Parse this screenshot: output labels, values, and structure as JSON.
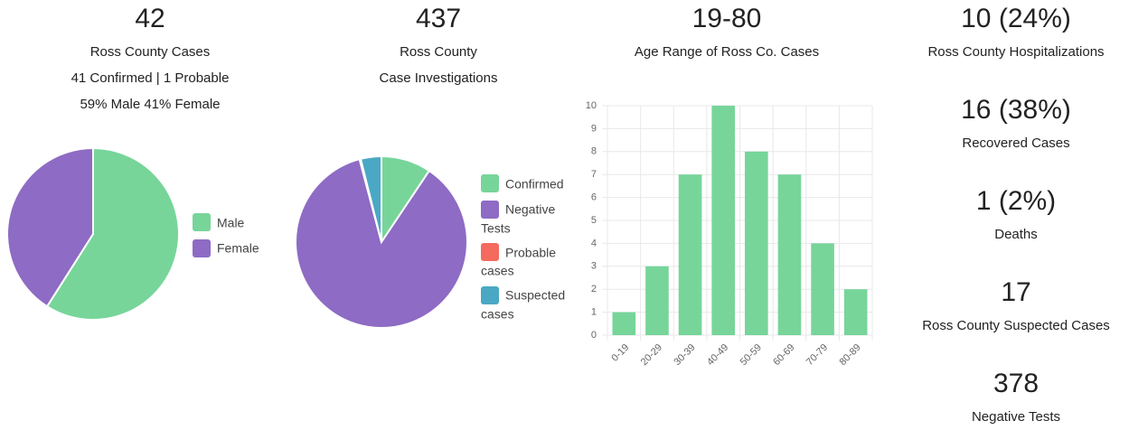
{
  "panels": [
    {
      "value": "42",
      "lines": [
        "Ross County Cases",
        "41 Confirmed | 1 Probable",
        "59% Male 41% Female"
      ]
    },
    {
      "value": "437",
      "lines": [
        "Ross County",
        "Case Investigations"
      ]
    },
    {
      "value": "19-80",
      "lines": [
        "Age Range of Ross Co. Cases"
      ]
    }
  ],
  "stats": [
    {
      "value": "10 (24%)",
      "label": "Ross County Hospitalizations"
    },
    {
      "value": "16 (38%)",
      "label": "Recovered Cases"
    },
    {
      "value": "1 (2%)",
      "label": "Deaths"
    },
    {
      "value": "17",
      "label": "Ross County Suspected Cases"
    },
    {
      "value": "378",
      "label": "Negative Tests"
    }
  ],
  "chart_data": [
    {
      "type": "pie",
      "categories": [
        "Male",
        "Female"
      ],
      "values": [
        59,
        41
      ],
      "colors": [
        "#77d59a",
        "#8e6bc4"
      ],
      "legend": "right"
    },
    {
      "type": "pie",
      "categories": [
        "Confirmed",
        "Negative Tests",
        "Probable cases",
        "Suspected cases"
      ],
      "values": [
        41,
        378,
        1,
        17
      ],
      "colors": [
        "#77d59a",
        "#8e6bc4",
        "#f46a5e",
        "#4aa8c4"
      ],
      "legend": "right"
    },
    {
      "type": "bar",
      "categories": [
        "0-19",
        "20-29",
        "30-39",
        "40-49",
        "50-59",
        "60-69",
        "70-79",
        "80-89"
      ],
      "values": [
        1,
        3,
        7,
        10,
        8,
        7,
        4,
        2
      ],
      "color": "#77d59a",
      "ylim": [
        0,
        10
      ],
      "yticks": [
        0,
        1,
        2,
        3,
        4,
        5,
        6,
        7,
        8,
        9,
        10
      ],
      "grid": true
    }
  ]
}
